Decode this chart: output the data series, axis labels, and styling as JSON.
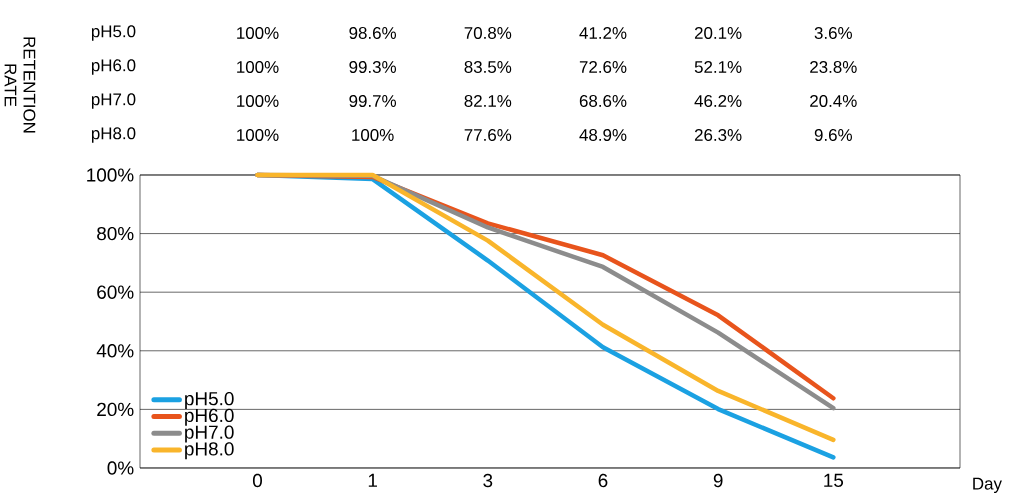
{
  "chart_data": {
    "type": "line",
    "ylabel": "RETENTION RATE",
    "xlabel": "Day",
    "categories": [
      "0",
      "1",
      "3",
      "6",
      "9",
      "15"
    ],
    "ylim": [
      0,
      100
    ],
    "yticks": [
      {
        "value": 0,
        "label": "0%"
      },
      {
        "value": 20,
        "label": "20%"
      },
      {
        "value": 40,
        "label": "40%"
      },
      {
        "value": 60,
        "label": "60%"
      },
      {
        "value": 80,
        "label": "80%"
      },
      {
        "value": 100,
        "label": "100%"
      }
    ],
    "grid": "y",
    "legend": "bottom left",
    "marker": "none",
    "line_style": "solid",
    "series": [
      {
        "name": "pH5.0",
        "color": "#1ba1e2",
        "values": [
          100,
          98.6,
          70.8,
          41.2,
          20.1,
          3.6
        ],
        "value_labels": [
          "100%",
          "98.6%",
          "70.8%",
          "41.2%",
          "20.1%",
          "3.6%"
        ]
      },
      {
        "name": "pH6.0",
        "color": "#e8541c",
        "values": [
          100,
          99.3,
          83.5,
          72.6,
          52.1,
          23.8
        ],
        "value_labels": [
          "100%",
          "99.3%",
          "83.5%",
          "72.6%",
          "52.1%",
          "23.8%"
        ]
      },
      {
        "name": "pH7.0",
        "color": "#8c8c8c",
        "values": [
          100,
          99.7,
          82.1,
          68.6,
          46.2,
          20.4
        ],
        "value_labels": [
          "100%",
          "99.7%",
          "82.1%",
          "68.6%",
          "46.2%",
          "20.4%"
        ]
      },
      {
        "name": "pH8.0",
        "color": "#f9b52b",
        "values": [
          100,
          100,
          77.6,
          48.9,
          26.3,
          9.6
        ],
        "value_labels": [
          "100%",
          "100%",
          "77.6%",
          "48.9%",
          "26.3%",
          "9.6%"
        ]
      }
    ]
  }
}
